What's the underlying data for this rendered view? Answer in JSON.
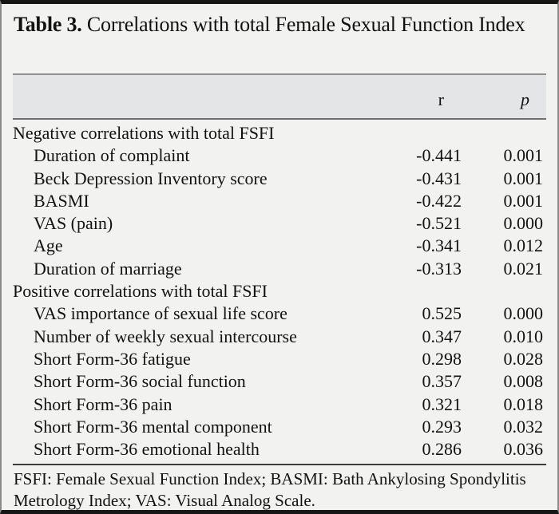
{
  "table": {
    "label": "Table 3.",
    "title_rest": " Correlations with total Female Sexual Function Index",
    "columns": {
      "r": "r",
      "p": "p"
    },
    "rows": [
      {
        "type": "section",
        "label": "Negative correlations with total FSFI",
        "r": "",
        "p": ""
      },
      {
        "type": "item",
        "label": "Duration of complaint",
        "r": "-0.441",
        "p": "0.001"
      },
      {
        "type": "item",
        "label": "Beck Depression Inventory score",
        "r": "-0.431",
        "p": "0.001"
      },
      {
        "type": "item",
        "label": "BASMI",
        "r": "-0.422",
        "p": "0.001"
      },
      {
        "type": "item",
        "label": "VAS (pain)",
        "r": "-0.521",
        "p": "0.000"
      },
      {
        "type": "item",
        "label": "Age",
        "r": "-0.341",
        "p": "0.012"
      },
      {
        "type": "item",
        "label": "Duration of marriage",
        "r": "-0.313",
        "p": "0.021"
      },
      {
        "type": "section",
        "label": "Positive correlations with total FSFI",
        "r": "",
        "p": ""
      },
      {
        "type": "item",
        "label": "VAS importance of sexual life score",
        "r": "0.525",
        "p": "0.000"
      },
      {
        "type": "item",
        "label": "Number of weekly sexual intercourse",
        "r": "0.347",
        "p": "0.010"
      },
      {
        "type": "item",
        "label": "Short Form-36 fatigue",
        "r": "0.298",
        "p": "0.028"
      },
      {
        "type": "item",
        "label": "Short Form-36 social function",
        "r": "0.357",
        "p": "0.008"
      },
      {
        "type": "item",
        "label": "Short Form-36 pain",
        "r": "0.321",
        "p": "0.018"
      },
      {
        "type": "item",
        "label": "Short Form-36 mental component",
        "r": "0.293",
        "p": "0.032"
      },
      {
        "type": "item",
        "label": "Short Form-36 emotional health",
        "r": "0.286",
        "p": "0.036"
      }
    ],
    "footnote": "FSFI: Female Sexual Function Index; BASMI: Bath Ankylosing Spondylitis Metrology Index; VAS: Visual Analog Scale.",
    "colors": {
      "background": "#f2f2f1",
      "header_band": "#e4e5e7",
      "frame_border": "#161616",
      "text": "#121212"
    }
  }
}
